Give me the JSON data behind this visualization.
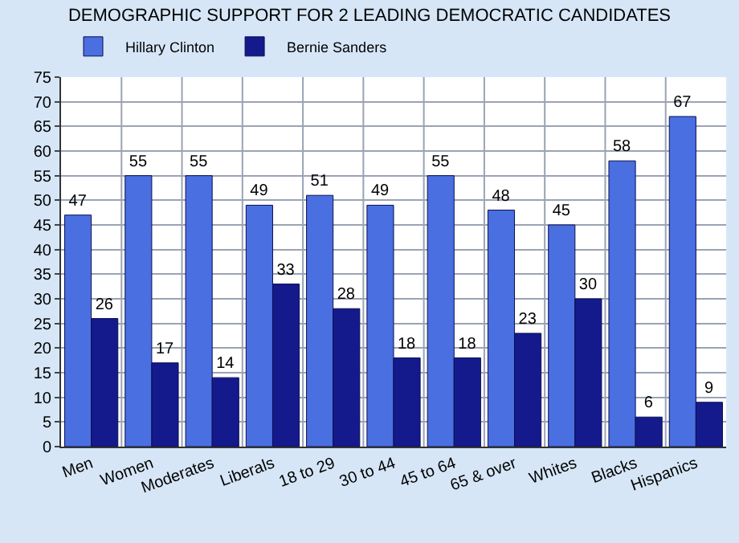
{
  "chart_data": {
    "type": "bar",
    "title": "DEMOGRAPHIC SUPPORT FOR 2 LEADING DEMOCRATIC CANDIDATES",
    "categories": [
      "Men",
      "Women",
      "Moderates",
      "Liberals",
      "18 to 29",
      "30 to 44",
      "45 to 64",
      "65 & over",
      "Whites",
      "Blacks",
      "Hispanics"
    ],
    "series": [
      {
        "name": "Hillary Clinton",
        "color": "#4a6fe0",
        "values": [
          47,
          55,
          55,
          49,
          51,
          49,
          55,
          48,
          45,
          58,
          67
        ]
      },
      {
        "name": "Bernie Sanders",
        "color": "#141a8c",
        "values": [
          26,
          17,
          14,
          33,
          28,
          18,
          18,
          23,
          30,
          6,
          9
        ]
      }
    ],
    "ylim": [
      0,
      75
    ],
    "yticks": [
      0,
      5,
      10,
      15,
      20,
      25,
      30,
      35,
      40,
      45,
      50,
      55,
      60,
      65,
      70,
      75
    ],
    "grid": true,
    "legend": "top left",
    "data_labels": true
  }
}
